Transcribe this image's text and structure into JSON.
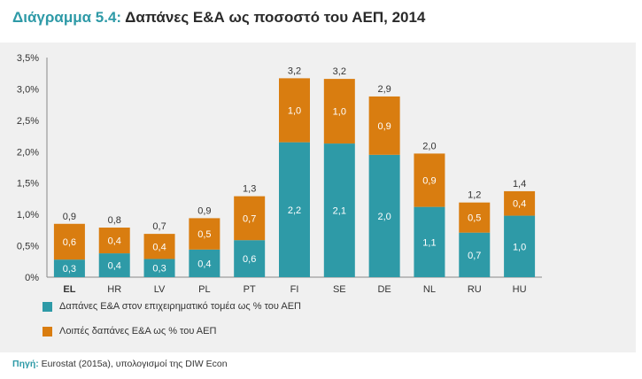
{
  "header": {
    "title_lead": "Διάγραμμα 5.4:",
    "title_rest": " Δαπάνες Ε&Α ως ποσοστό του ΑΕΠ, 2014"
  },
  "source": {
    "label": "Πηγή:",
    "text": " Eurostat (2015a), υπολογισμοί της DIW Econ"
  },
  "colors": {
    "business": "#2e9aa7",
    "other": "#d97d10",
    "title_accent": "#2e9aa7"
  },
  "chart_data": {
    "type": "bar",
    "stacked": true,
    "categories": [
      "EL",
      "HR",
      "LV",
      "PL",
      "PT",
      "FI",
      "SE",
      "DE",
      "NL",
      "RU",
      "HU"
    ],
    "highlight_category": "EL",
    "series": [
      {
        "name": "Δαπάνες Ε&Α στον επιχειρηματικό τομέα ως % του ΑΕΠ",
        "values": [
          0.3,
          0.4,
          0.3,
          0.4,
          0.6,
          2.2,
          2.1,
          2.0,
          1.1,
          0.7,
          1.0
        ]
      },
      {
        "name": "Λοιπές δαπάνες Ε&Α ως % του ΑΕΠ",
        "values": [
          0.6,
          0.4,
          0.4,
          0.5,
          0.7,
          1.0,
          1.0,
          0.9,
          0.9,
          0.5,
          0.4
        ]
      }
    ],
    "bar_heights": [
      0.85,
      0.79,
      0.69,
      0.94,
      1.29,
      3.17,
      3.16,
      2.88,
      1.97,
      1.19,
      1.37
    ],
    "business_heights": [
      0.28,
      0.38,
      0.29,
      0.44,
      0.59,
      2.15,
      2.13,
      1.95,
      1.12,
      0.71,
      0.98
    ],
    "value_labels": {
      "business": [
        "0,3",
        "0,4",
        "0,3",
        "0,4",
        "0,6",
        "2,2",
        "2,1",
        "2,0",
        "1,1",
        "0,7",
        "1,0"
      ],
      "other": [
        "0,6",
        "0,4",
        "0,4",
        "0,5",
        "0,7",
        "1,0",
        "1,0",
        "0,9",
        "0,9",
        "0,5",
        "0,4"
      ],
      "total": [
        "0,9",
        "0,8",
        "0,7",
        "0,9",
        "1,3",
        "3,2",
        "3,2",
        "2,9",
        "2,0",
        "1,2",
        "1,4"
      ]
    },
    "ylim": [
      0,
      3.5
    ],
    "yticks": [
      "0%",
      "0,5%",
      "1,0%",
      "1,5%",
      "2,0%",
      "2,5%",
      "3,0%",
      "3,5%"
    ],
    "title": "",
    "xlabel": "",
    "ylabel": "",
    "grid": false,
    "legend_position": "bottom-left"
  }
}
